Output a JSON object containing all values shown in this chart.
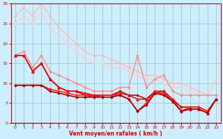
{
  "background_color": "#cceeff",
  "grid_color": "#aacccc",
  "xlabel": "Vent moyen/en rafales ( km/h )",
  "xlabel_color": "#cc0000",
  "tick_color": "#cc0000",
  "xlim": [
    -0.5,
    23.5
  ],
  "ylim": [
    0,
    30
  ],
  "yticks": [
    0,
    5,
    10,
    15,
    20,
    25,
    30
  ],
  "xticks": [
    0,
    1,
    2,
    3,
    4,
    5,
    6,
    7,
    8,
    9,
    10,
    11,
    12,
    13,
    14,
    15,
    16,
    17,
    18,
    19,
    20,
    21,
    22,
    23
  ],
  "lines": [
    {
      "x": [
        0,
        1,
        2,
        3,
        4,
        5,
        6,
        7,
        8,
        9,
        10,
        11,
        12,
        13,
        14,
        15,
        16,
        17,
        18,
        19,
        20,
        21,
        22,
        23
      ],
      "y": [
        27,
        29,
        27,
        30,
        27,
        24,
        22,
        20,
        18,
        17,
        17,
        16,
        15,
        14,
        13,
        12,
        12,
        11,
        10,
        10,
        9,
        8,
        7,
        11
      ],
      "color": "#ffbbbb",
      "lw": 1.0,
      "marker": "D",
      "ms": 2.0
    },
    {
      "x": [
        0,
        1,
        2,
        3,
        4,
        5,
        6,
        7,
        8,
        9,
        10,
        11,
        12,
        13,
        14,
        15,
        16,
        17,
        18,
        19,
        20,
        21,
        22,
        23
      ],
      "y": [
        25,
        27,
        25,
        28,
        24,
        22,
        20,
        18,
        16,
        15,
        15,
        14,
        14,
        13,
        12,
        11,
        11,
        10,
        9,
        9,
        8,
        7,
        7,
        11
      ],
      "color": "#ffcccc",
      "lw": 1.0,
      "marker": "D",
      "ms": 2.0
    },
    {
      "x": [
        0,
        1,
        2,
        3,
        4,
        5,
        6,
        7,
        8,
        9,
        10,
        11,
        12,
        13,
        14,
        15,
        16,
        17,
        18,
        19,
        20,
        21,
        22,
        23
      ],
      "y": [
        17,
        18,
        14,
        17,
        13,
        12,
        11,
        10,
        9,
        8,
        8,
        8,
        9,
        9,
        17,
        9,
        11,
        12,
        8,
        7,
        7,
        7,
        7,
        7
      ],
      "color": "#ff8888",
      "lw": 1.0,
      "marker": "D",
      "ms": 2.0
    },
    {
      "x": [
        0,
        1,
        2,
        3,
        4,
        5,
        6,
        7,
        8,
        9,
        10,
        11,
        12,
        13,
        14,
        15,
        16,
        17,
        18,
        19,
        20,
        21,
        22,
        23
      ],
      "y": [
        17,
        17,
        13,
        15,
        11,
        9,
        8,
        8,
        7,
        7,
        7,
        7,
        8,
        7,
        7,
        6,
        8,
        8,
        6,
        4,
        4,
        4,
        3,
        6
      ],
      "color": "#cc0000",
      "lw": 1.2,
      "marker": "D",
      "ms": 2.0
    },
    {
      "x": [
        0,
        1,
        2,
        3,
        4,
        5,
        6,
        7,
        8,
        9,
        10,
        11,
        12,
        13,
        14,
        15,
        16,
        17,
        18,
        19,
        20,
        21,
        22,
        23
      ],
      "y": [
        17,
        17,
        13,
        15,
        11,
        9,
        8,
        8,
        7.5,
        7,
        7,
        7,
        7.5,
        7,
        6,
        6,
        7.5,
        7.5,
        5.5,
        3,
        3.5,
        3.5,
        2.5,
        6
      ],
      "color": "#dd1111",
      "lw": 1.2,
      "marker": "^",
      "ms": 3.0
    },
    {
      "x": [
        0,
        1,
        2,
        3,
        4,
        5,
        6,
        7,
        8,
        9,
        10,
        11,
        12,
        13,
        14,
        15,
        16,
        17,
        18,
        19,
        20,
        21,
        22,
        23
      ],
      "y": [
        9.5,
        9.5,
        9.5,
        9.5,
        8.5,
        8,
        7.5,
        7,
        7,
        6.5,
        7,
        7,
        7,
        6,
        3,
        5,
        8,
        7.5,
        6,
        3,
        4,
        4,
        3,
        6
      ],
      "color": "#ff2222",
      "lw": 1.2,
      "marker": "D",
      "ms": 2.0
    },
    {
      "x": [
        0,
        1,
        2,
        3,
        4,
        5,
        6,
        7,
        8,
        9,
        10,
        11,
        12,
        13,
        14,
        15,
        16,
        17,
        18,
        19,
        20,
        21,
        22,
        23
      ],
      "y": [
        9.5,
        9.5,
        9.5,
        9.5,
        8,
        7.5,
        7,
        6.5,
        6.5,
        6.5,
        6.5,
        6.5,
        7,
        6,
        3,
        4.5,
        7.5,
        7,
        5.5,
        3,
        3.5,
        3.5,
        2.5,
        6
      ],
      "color": "#aa0000",
      "lw": 1.2,
      "marker": "D",
      "ms": 2.0
    }
  ]
}
